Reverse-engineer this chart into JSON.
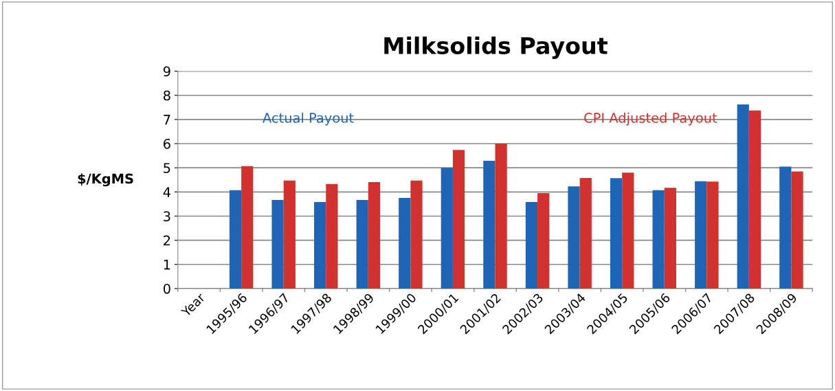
{
  "chart_data": {
    "type": "bar",
    "title": "Milksolids Payout",
    "ylabel": "$/KgMS",
    "categories": [
      "Year",
      "1995/96",
      "1996/97",
      "1997/98",
      "1998/99",
      "1999/00",
      "2000/01",
      "2001/02",
      "2002/03",
      "2003/04",
      "2004/05",
      "2005/06",
      "2006/07",
      "2007/08",
      "2008/09"
    ],
    "series": [
      {
        "name": "Actual Payout",
        "color": "#1f65b5",
        "values": [
          null,
          4.07,
          3.67,
          3.58,
          3.67,
          3.75,
          5.0,
          5.29,
          3.58,
          4.23,
          4.57,
          4.07,
          4.44,
          7.62,
          5.05
        ]
      },
      {
        "name": "CPI Adjusted Payout",
        "color": "#d2322d",
        "values": [
          null,
          5.07,
          4.47,
          4.33,
          4.41,
          4.47,
          5.74,
          6.0,
          3.95,
          4.58,
          4.8,
          4.17,
          4.43,
          7.37,
          4.85
        ]
      }
    ],
    "ylim": [
      0,
      9
    ],
    "yticks": [
      0,
      1,
      2,
      3,
      4,
      5,
      6,
      7,
      8,
      9
    ],
    "grid": "y",
    "legend": false
  }
}
